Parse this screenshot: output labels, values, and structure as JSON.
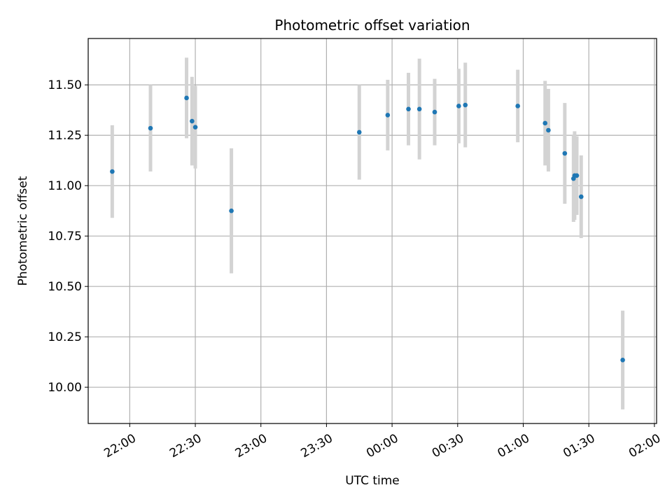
{
  "chart_data": {
    "type": "scatter",
    "title": "Photometric offset variation",
    "xlabel": "UTC time",
    "ylabel": "Photometric offset",
    "xlim": [
      "21:41",
      "02:01"
    ],
    "ylim": [
      9.82,
      11.73
    ],
    "yticks": [
      "10.00",
      "10.25",
      "10.50",
      "10.75",
      "11.00",
      "11.25",
      "11.50"
    ],
    "xticks": [
      "22:00",
      "22:30",
      "23:00",
      "23:30",
      "00:00",
      "00:30",
      "01:00",
      "01:30",
      "02:00"
    ],
    "grid": true,
    "point_color": "#1f77b4",
    "errorbar_color": "#d3d3d3",
    "points": [
      {
        "x": "21:52:00",
        "y": 11.07,
        "err": 0.23
      },
      {
        "x": "22:09:30",
        "y": 11.285,
        "err": 0.215
      },
      {
        "x": "22:26:00",
        "y": 11.435,
        "err": 0.2
      },
      {
        "x": "22:28:30",
        "y": 11.32,
        "err": 0.22
      },
      {
        "x": "22:30:00",
        "y": 11.29,
        "err": 0.205
      },
      {
        "x": "22:46:30",
        "y": 10.875,
        "err": 0.31
      },
      {
        "x": "23:45:00",
        "y": 11.265,
        "err": 0.235
      },
      {
        "x": "23:58:00",
        "y": 11.35,
        "err": 0.175
      },
      {
        "x": "00:07:30",
        "y": 11.38,
        "err": 0.18
      },
      {
        "x": "00:12:30",
        "y": 11.38,
        "err": 0.25
      },
      {
        "x": "00:19:30",
        "y": 11.365,
        "err": 0.165
      },
      {
        "x": "00:30:30",
        "y": 11.395,
        "err": 0.185
      },
      {
        "x": "00:33:30",
        "y": 11.4,
        "err": 0.21
      },
      {
        "x": "00:57:30",
        "y": 11.395,
        "err": 0.18
      },
      {
        "x": "01:10:00",
        "y": 11.31,
        "err": 0.21
      },
      {
        "x": "01:11:30",
        "y": 11.275,
        "err": 0.205
      },
      {
        "x": "01:19:00",
        "y": 11.16,
        "err": 0.25
      },
      {
        "x": "01:23:00",
        "y": 11.035,
        "err": 0.215
      },
      {
        "x": "01:23:30",
        "y": 11.05,
        "err": 0.22
      },
      {
        "x": "01:24:30",
        "y": 11.05,
        "err": 0.195
      },
      {
        "x": "01:26:30",
        "y": 10.945,
        "err": 0.205
      },
      {
        "x": "01:45:30",
        "y": 10.135,
        "err": 0.245
      }
    ]
  }
}
